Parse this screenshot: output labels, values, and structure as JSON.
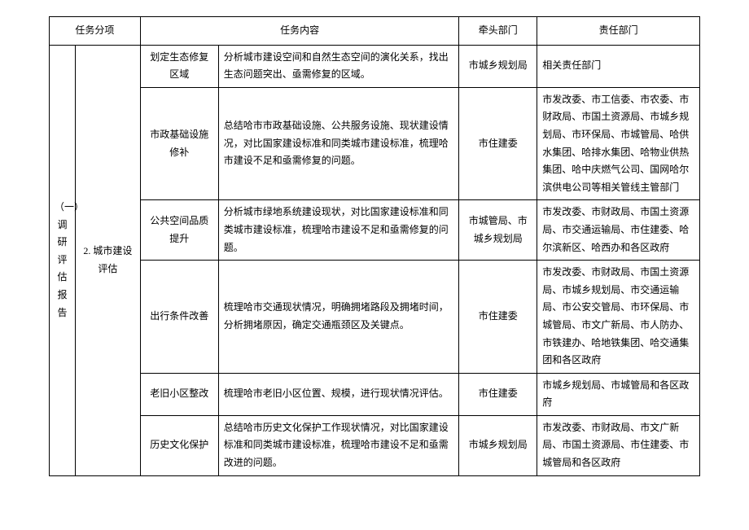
{
  "headers": {
    "task_category": "任务分项",
    "task_content": "任务内容",
    "lead_dept": "牵头部门",
    "resp_dept": "责任部门"
  },
  "group1": "（一）调研评估报告",
  "group2": "2. 城市建设评估",
  "rows": [
    {
      "sub": "划定生态修复区域",
      "content": "分析城市建设空间和自然生态空间的演化关系，找出生态问题突出、亟需修复的区域。",
      "lead": "市城乡规划局",
      "resp": "相关责任部门"
    },
    {
      "sub": "市政基础设施修补",
      "content": "总结哈市市政基础设施、公共服务设施、现状建设情况，对比国家建设标准和同类城市建设标准，梳理哈市建设不足和亟需修复的问题。",
      "lead": "市住建委",
      "resp": "市发改委、市工信委、市农委、市财政局、市国土资源局、市城乡规划局、市环保局、市城管局、哈供水集团、哈排水集团、哈物业供热集团、哈中庆燃气公司、国网哈尔滨供电公司等相关管线主管部门"
    },
    {
      "sub": "公共空间品质提升",
      "content": "分析城市绿地系统建设现状，对比国家建设标准和同类城市建设标准，梳理哈市建设不足和亟需修复的问题。",
      "lead": "市城管局、市城乡规划局",
      "resp": "市发改委、市财政局、市国土资源局、市交通运输局、市住建委、哈尔滨新区、哈西办和各区政府"
    },
    {
      "sub": "出行条件改善",
      "content": "梳理哈市交通现状情况，明确拥堵路段及拥堵时间，分析拥堵原因，确定交通瓶颈区及关键点。",
      "lead": "市住建委",
      "resp": "市发改委、市财政局、市国土资源局、市城乡规划局、市交通运输局、市公安交管局、市环保局、市城管局、市文广新局、市人防办、市铁建办、哈地铁集团、哈交通集团和各区政府"
    },
    {
      "sub": "老旧小区整改",
      "content": "梳理哈市老旧小区位置、规模，进行现状情况评估。",
      "lead": "市住建委",
      "resp": "市城乡规划局、市城管局和各区政府"
    },
    {
      "sub": "历史文化保护",
      "content": "总结哈市历史文化保护工作现状情况，对比国家建设标准和同类城市建设标准，梳理哈市建设不足和亟需改进的问题。",
      "lead": "市城乡规划局",
      "resp": "市发改委、市财政局、市文广新局、市国土资源局、市住建委、市城管局和各区政府"
    }
  ]
}
